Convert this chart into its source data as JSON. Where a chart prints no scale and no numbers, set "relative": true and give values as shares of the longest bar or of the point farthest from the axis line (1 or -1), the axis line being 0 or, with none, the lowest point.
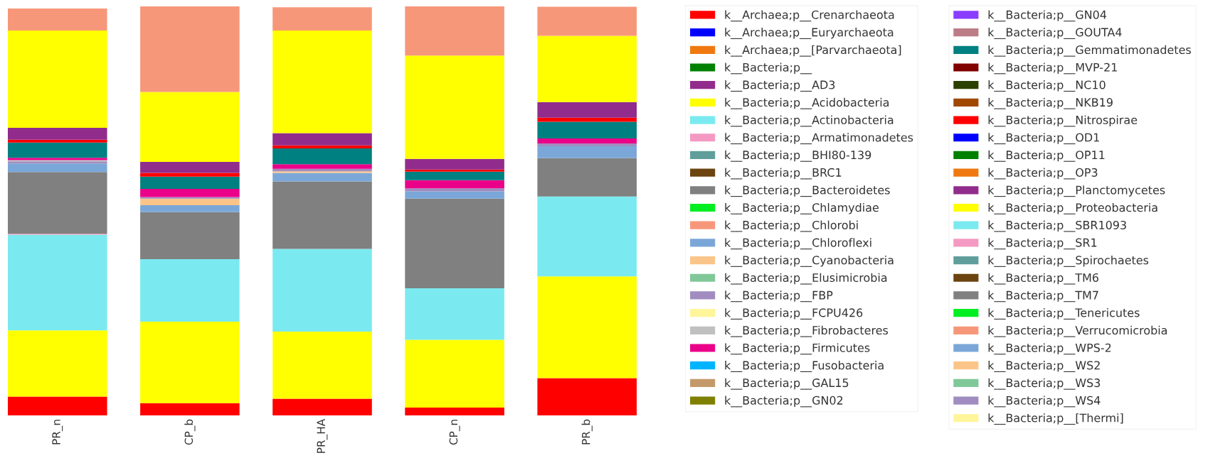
{
  "chart_data": {
    "type": "bar",
    "stacked": true,
    "relative": true,
    "legend": "right",
    "categories": [
      "PR_n",
      "CP_b",
      "PR_HA",
      "CP_n",
      "PR_b"
    ],
    "series": [
      {
        "name": "k__Archaea;p__Crenarchaeota",
        "color": "#ff0000",
        "values": [
          0.046,
          0.03,
          0.041,
          0.019,
          0.091
        ]
      },
      {
        "name": "k__Archaea;p__Euryarchaeota",
        "color": "#0000ff",
        "values": [
          0,
          0,
          0,
          0,
          0
        ]
      },
      {
        "name": "k__Archaea;p__[Parvarchaeota]",
        "color": "#f07810",
        "values": [
          0,
          0,
          0,
          0,
          0
        ]
      },
      {
        "name": "k__Bacteria;p__",
        "color": "#008000",
        "values": [
          0,
          0,
          0,
          0,
          0
        ]
      },
      {
        "name": "k__Bacteria;p__AD3",
        "color": "#912c8c",
        "values": [
          0,
          0,
          0,
          0,
          0
        ]
      },
      {
        "name": "k__Bacteria;p__Acidobacteria",
        "color": "#ffff00",
        "values": [
          0.162,
          0.199,
          0.164,
          0.166,
          0.249
        ]
      },
      {
        "name": "k__Bacteria;p__Actinobacteria",
        "color": "#7aeaf0",
        "values": [
          0.234,
          0.153,
          0.202,
          0.126,
          0.195
        ]
      },
      {
        "name": "k__Bacteria;p__Armatimonadetes",
        "color": "#f49ac2",
        "values": [
          0.002,
          0,
          0,
          0,
          0
        ]
      },
      {
        "name": "k__Bacteria;p__BHI80-139",
        "color": "#5f9e9a",
        "values": [
          0,
          0,
          0,
          0,
          0
        ]
      },
      {
        "name": "k__Bacteria;p__BRC1",
        "color": "#6b4410",
        "values": [
          0,
          0,
          0,
          0,
          0
        ]
      },
      {
        "name": "k__Bacteria;p__Bacteroidetes",
        "color": "#808080",
        "values": [
          0.151,
          0.115,
          0.165,
          0.219,
          0.094
        ]
      },
      {
        "name": "k__Bacteria;p__Chlamydiae",
        "color": "#00ee22",
        "values": [
          0,
          0,
          0,
          0,
          0
        ]
      },
      {
        "name": "k__Bacteria;p__Chlorobi",
        "color": "#f7977a",
        "values": [
          0,
          0,
          0,
          0,
          0
        ]
      },
      {
        "name": "k__Bacteria;p__Chloroflexi",
        "color": "#7ba7d8",
        "values": [
          0.021,
          0.017,
          0.021,
          0.018,
          0.029
        ]
      },
      {
        "name": "k__Bacteria;p__Cyanobacteria",
        "color": "#fbc58a",
        "values": [
          0,
          0.016,
          0.004,
          0,
          0
        ]
      },
      {
        "name": "k__Bacteria;p__Elusimicrobia",
        "color": "#80c898",
        "values": [
          0,
          0,
          0,
          0,
          0
        ]
      },
      {
        "name": "k__Bacteria;p__FBP",
        "color": "#a08cc0",
        "values": [
          0.005,
          0.004,
          0.006,
          0.007,
          0.007
        ]
      },
      {
        "name": "k__Bacteria;p__FCPU426",
        "color": "#fff59a",
        "values": [
          0,
          0,
          0,
          0,
          0
        ]
      },
      {
        "name": "k__Bacteria;p__Fibrobacteres",
        "color": "#c0c0c0",
        "values": [
          0.003,
          0,
          0,
          0,
          0
        ]
      },
      {
        "name": "k__Bacteria;p__Firmicutes",
        "color": "#ea0089",
        "values": [
          0.006,
          0.02,
          0.011,
          0.02,
          0.012
        ]
      },
      {
        "name": "k__Bacteria;p__Fusobacteria",
        "color": "#00b4ff",
        "values": [
          0,
          0,
          0,
          0,
          0
        ]
      },
      {
        "name": "k__Bacteria;p__GAL15",
        "color": "#c4996a",
        "values": [
          0,
          0,
          0,
          0,
          0
        ]
      },
      {
        "name": "k__Bacteria;p__GN02",
        "color": "#808000",
        "values": [
          0,
          0,
          0,
          0,
          0
        ]
      },
      {
        "name": "k__Bacteria;p__GN04",
        "color": "#8a3dff",
        "values": [
          0,
          0,
          0,
          0,
          0
        ]
      },
      {
        "name": "k__Bacteria;p__GOUTA4",
        "color": "#bc7c86",
        "values": [
          0,
          0,
          0,
          0,
          0
        ]
      },
      {
        "name": "k__Bacteria;p__Gemmatimonadetes",
        "color": "#008080",
        "values": [
          0.037,
          0.03,
          0.039,
          0.021,
          0.041
        ]
      },
      {
        "name": "k__Bacteria;p__MVP-21",
        "color": "#800000",
        "values": [
          0,
          0,
          0,
          0,
          0
        ]
      },
      {
        "name": "k__Bacteria;p__NC10",
        "color": "#2c4000",
        "values": [
          0,
          0,
          0,
          0,
          0
        ]
      },
      {
        "name": "k__Bacteria;p__NKB19",
        "color": "#a04800",
        "values": [
          0,
          0,
          0,
          0,
          0
        ]
      },
      {
        "name": "k__Bacteria;p__Nitrospirae",
        "color": "#ff0000",
        "values": [
          0.007,
          0.009,
          0.007,
          0.005,
          0.01
        ]
      },
      {
        "name": "k__Bacteria;p__OD1",
        "color": "#0000ff",
        "values": [
          0,
          0,
          0,
          0,
          0
        ]
      },
      {
        "name": "k__Bacteria;p__OP11",
        "color": "#008000",
        "values": [
          0,
          0,
          0,
          0,
          0
        ]
      },
      {
        "name": "k__Bacteria;p__OP3",
        "color": "#f07810",
        "values": [
          0,
          0,
          0,
          0,
          0
        ]
      },
      {
        "name": "k__Bacteria;p__Planctomycetes",
        "color": "#912c8c",
        "values": [
          0.029,
          0.027,
          0.03,
          0.026,
          0.038
        ]
      },
      {
        "name": "k__Bacteria;p__Proteobacteria",
        "color": "#ffff00",
        "values": [
          0.238,
          0.171,
          0.251,
          0.253,
          0.162
        ]
      },
      {
        "name": "k__Bacteria;p__SBR1093",
        "color": "#7aeaf0",
        "values": [
          0,
          0,
          0,
          0,
          0
        ]
      },
      {
        "name": "k__Bacteria;p__SR1",
        "color": "#f49ac2",
        "values": [
          0,
          0,
          0,
          0,
          0
        ]
      },
      {
        "name": "k__Bacteria;p__Spirochaetes",
        "color": "#5f9e9a",
        "values": [
          0,
          0,
          0,
          0,
          0
        ]
      },
      {
        "name": "k__Bacteria;p__TM6",
        "color": "#6b4410",
        "values": [
          0,
          0,
          0,
          0,
          0
        ]
      },
      {
        "name": "k__Bacteria;p__TM7",
        "color": "#808080",
        "values": [
          0,
          0,
          0,
          0,
          0
        ]
      },
      {
        "name": "k__Bacteria;p__Tenericutes",
        "color": "#00ee22",
        "values": [
          0,
          0,
          0,
          0,
          0
        ]
      },
      {
        "name": "k__Bacteria;p__Verrucomicrobia",
        "color": "#f7977a",
        "values": [
          0.054,
          0.209,
          0.057,
          0.12,
          0.071
        ]
      },
      {
        "name": "k__Bacteria;p__WPS-2",
        "color": "#7ba7d8",
        "values": [
          0,
          0,
          0,
          0,
          0
        ]
      },
      {
        "name": "k__Bacteria;p__WS2",
        "color": "#fbc58a",
        "values": [
          0,
          0,
          0,
          0,
          0
        ]
      },
      {
        "name": "k__Bacteria;p__WS3",
        "color": "#80c898",
        "values": [
          0,
          0,
          0,
          0,
          0
        ]
      },
      {
        "name": "k__Bacteria;p__WS4",
        "color": "#a08cc0",
        "values": [
          0,
          0,
          0,
          0,
          0
        ]
      },
      {
        "name": "k__Bacteria;p__[Thermi]",
        "color": "#fff59a",
        "values": [
          0,
          0,
          0,
          0,
          0
        ]
      }
    ]
  }
}
